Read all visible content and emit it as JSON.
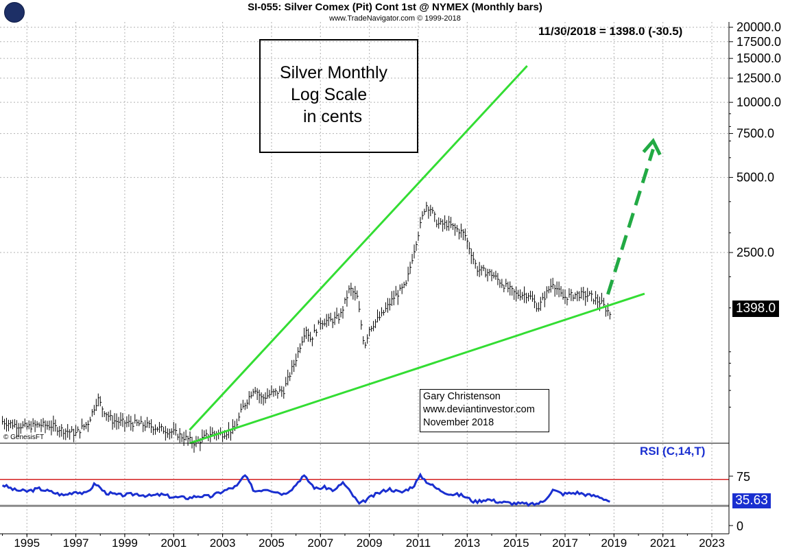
{
  "header": {
    "title": "SI-055:  Silver Comex (Pit) Cont 1st @ NYMEX  (Monthly bars)",
    "subtitle": "www.TradeNavigator.com © 1999-2018",
    "last_value": "11/30/2018 = 1398.0 (-30.5)",
    "copyright": "© GenesisFT"
  },
  "annotation_box": {
    "lines": [
      "Silver Monthly",
      "Log Scale",
      "in cents"
    ]
  },
  "credit_box": {
    "lines": [
      "Gary Christenson",
      "www.deviantinvestor.com",
      "November 2018"
    ]
  },
  "price_tag": "1398.0",
  "rsi_tag": "35.63",
  "colors": {
    "price_bars": "#000000",
    "trendlines": "#33dd33",
    "projection_arrow": "#22aa44",
    "rsi_line": "#1a2fd0",
    "rsi_upper_line": "#d42020",
    "rsi_lower_line": "#888888",
    "grid": "#b0b0b0"
  },
  "chart_data": {
    "type": "line",
    "scale": "log",
    "xlabel": "",
    "ylabel": "",
    "x_ticks": [
      "1995",
      "1997",
      "1999",
      "2001",
      "2003",
      "2005",
      "2007",
      "2009",
      "2011",
      "2013",
      "2015",
      "2017",
      "2019",
      "2021",
      "2023"
    ],
    "y_ticks": [
      "2500.0",
      "5000.0",
      "7500.0",
      "10000.0",
      "12500.0",
      "15000.0",
      "17500.0",
      "20000.0"
    ],
    "ylim": [
      430,
      21000
    ],
    "xlim": [
      1993.9,
      2023.7
    ],
    "grid": true,
    "series": [
      {
        "x": [
          1994.0,
          1994.5,
          1995.0,
          1995.5,
          1996.0,
          1996.5,
          1997.0,
          1997.5,
          1997.9,
          1998.1,
          1998.5,
          1999.0,
          1999.5,
          2000.0,
          2000.5,
          2001.0,
          2001.5,
          2001.9,
          2002.5,
          2003.0,
          2003.5,
          2003.8,
          2004.3,
          2004.6,
          2005.0,
          2005.5,
          2006.0,
          2006.4,
          2006.6,
          2007.0,
          2007.5,
          2007.8,
          2008.2,
          2008.5,
          2008.8,
          2009.0,
          2009.5,
          2010.0,
          2010.5,
          2010.8,
          2011.3,
          2011.5,
          2011.8,
          2012.2,
          2012.7,
          2012.9,
          2013.4,
          2013.7,
          2014.0,
          2014.5,
          2015.0,
          2015.5,
          2015.9,
          2016.5,
          2016.9,
          2017.5,
          2018.0,
          2018.5,
          2018.9
        ],
        "values": [
          525,
          510,
          500,
          510,
          505,
          485,
          470,
          520,
          650,
          590,
          530,
          520,
          515,
          505,
          490,
          475,
          450,
          430,
          470,
          470,
          490,
          590,
          720,
          650,
          680,
          700,
          940,
          1250,
          1120,
          1320,
          1340,
          1380,
          1800,
          1650,
          1050,
          1240,
          1400,
          1650,
          1850,
          2500,
          3900,
          3750,
          3250,
          3250,
          3050,
          2950,
          2150,
          2100,
          2050,
          1850,
          1700,
          1700,
          1500,
          1900,
          1650,
          1700,
          1680,
          1560,
          1398
        ]
      }
    ],
    "trendlines": [
      {
        "name": "upper",
        "x": [
          2001.65,
          2015.45
        ],
        "y": [
          486,
          14000
        ]
      },
      {
        "name": "lower",
        "x": [
          2001.65,
          2020.25
        ],
        "y": [
          430,
          1710
        ]
      }
    ],
    "projection_arrow": {
      "x": [
        2018.75,
        2020.6
      ],
      "y": [
        1700,
        7000
      ]
    },
    "rsi": {
      "label": "RSI (C,14,T)",
      "ticks": [
        "75",
        "0"
      ],
      "upper_line": 70,
      "lower_line": 30,
      "x": [
        1994.0,
        1994.5,
        1995.0,
        1995.5,
        1996.0,
        1996.5,
        1997.0,
        1997.4,
        1997.8,
        1998.2,
        1998.8,
        1999.5,
        2000.0,
        2000.5,
        2001.0,
        2001.6,
        2002.0,
        2002.5,
        2003.0,
        2003.6,
        2003.9,
        2004.3,
        2004.8,
        2005.5,
        2005.9,
        2006.3,
        2006.8,
        2007.2,
        2007.6,
        2007.9,
        2008.2,
        2008.6,
        2008.9,
        2009.3,
        2009.8,
        2010.3,
        2010.8,
        2011.1,
        2011.3,
        2011.8,
        2012.3,
        2012.8,
        2013.3,
        2013.8,
        2014.3,
        2014.8,
        2015.3,
        2015.7,
        2016.1,
        2016.5,
        2016.9,
        2017.5,
        2018.0,
        2018.4,
        2018.9
      ],
      "values": [
        62,
        54,
        52,
        56,
        51,
        46,
        52,
        48,
        64,
        50,
        46,
        48,
        45,
        47,
        43,
        42,
        45,
        44,
        52,
        60,
        77,
        52,
        56,
        48,
        58,
        76,
        56,
        58,
        53,
        66,
        52,
        32,
        40,
        48,
        56,
        50,
        60,
        76,
        68,
        55,
        48,
        46,
        36,
        40,
        36,
        34,
        33,
        32,
        36,
        54,
        48,
        50,
        46,
        44,
        35.63
      ]
    }
  }
}
